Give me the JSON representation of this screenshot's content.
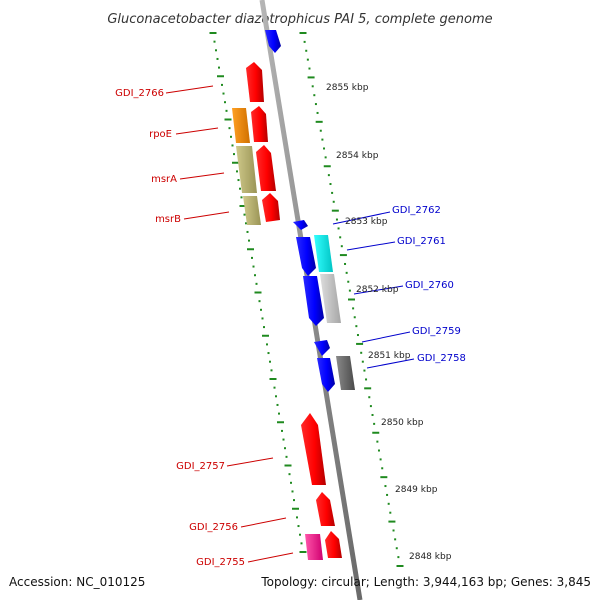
{
  "title": "Gluconacetobacter diazotrophicus PAI 5, complete genome",
  "footer": {
    "accession": "Accession: NC_010125",
    "topology": "Topology: circular; Length: 3,944,163 bp; Genes: 3,845"
  },
  "colors": {
    "backbone": "#8a8a8a",
    "tick": "#1f8a1f",
    "forward_label": "#cc0000",
    "reverse_label": "#0000cc"
  },
  "kbp_labels": [
    "2855 kbp",
    "2854 kbp",
    "2853 kbp",
    "2852 kbp",
    "2851 kbp",
    "2850 kbp",
    "2849 kbp",
    "2848 kbp"
  ],
  "genes_forward": [
    {
      "name": "GDI_2766",
      "color": "#ff0000"
    },
    {
      "name": "rpoE",
      "color": "#ff0000"
    },
    {
      "name": "msrA",
      "color": "#ff0000"
    },
    {
      "name": "msrB",
      "color": "#ff0000"
    },
    {
      "name": "GDI_2757",
      "color": "#ff0000"
    },
    {
      "name": "GDI_2756",
      "color": "#ff0000"
    },
    {
      "name": "GDI_2755",
      "color": "#ff0000"
    }
  ],
  "genes_reverse": [
    {
      "name": "GDI_2762",
      "color": "#0000ff"
    },
    {
      "name": "GDI_2761",
      "color": "#0000ff"
    },
    {
      "name": "GDI_2760",
      "color": "#0000ff"
    },
    {
      "name": "GDI_2759",
      "color": "#0000ff"
    },
    {
      "name": "GDI_2758",
      "color": "#0000ff"
    }
  ],
  "feature_colors": {
    "orange": "#ff8c00",
    "olive": "#bdb76b",
    "cyan": "#00e5e5",
    "lightgray": "#c8c8c8",
    "darkgray": "#6e6e6e",
    "magenta": "#ff1493"
  }
}
